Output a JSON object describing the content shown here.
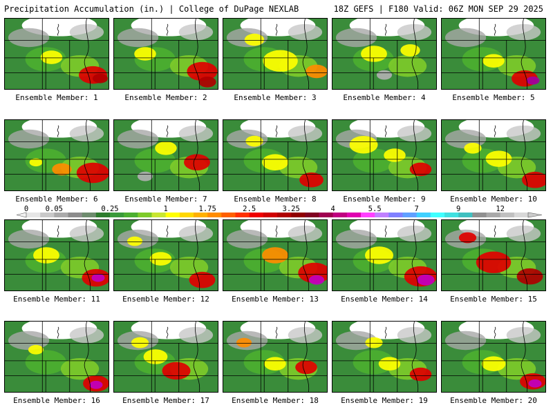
{
  "header": {
    "title": "Precipitation Accumulation (in.) | College of DuPage NEXLAB",
    "run_info": "18Z GEFS | F180 Valid: 06Z MON SEP 29 2025"
  },
  "member_label_prefix": "Ensemble Member:",
  "members": [
    {
      "id": 1,
      "blobs": [
        [
          0.85,
          0.8,
          1.3,
          "#e00000"
        ],
        [
          0.92,
          0.85,
          0.7,
          "#b00000"
        ],
        [
          0.45,
          0.55,
          1.0,
          "#ffff00"
        ]
      ]
    },
    {
      "id": 2,
      "blobs": [
        [
          0.85,
          0.75,
          1.4,
          "#e00000"
        ],
        [
          0.9,
          0.9,
          0.8,
          "#b00000"
        ],
        [
          0.3,
          0.5,
          1.0,
          "#ffff00"
        ]
      ]
    },
    {
      "id": 3,
      "blobs": [
        [
          0.55,
          0.6,
          1.6,
          "#ffff00"
        ],
        [
          0.9,
          0.75,
          1.0,
          "#ff8c00"
        ],
        [
          0.3,
          0.3,
          0.9,
          "#ffff00"
        ]
      ]
    },
    {
      "id": 4,
      "blobs": [
        [
          0.4,
          0.5,
          1.2,
          "#ffff00"
        ],
        [
          0.75,
          0.45,
          0.9,
          "#ffff00"
        ],
        [
          0.5,
          0.8,
          0.7,
          "#b0b0b0"
        ]
      ]
    },
    {
      "id": 5,
      "blobs": [
        [
          0.8,
          0.85,
          1.2,
          "#e00000"
        ],
        [
          0.88,
          0.88,
          0.6,
          "#a000a0"
        ],
        [
          0.5,
          0.6,
          1.0,
          "#ffff00"
        ]
      ]
    },
    {
      "id": 6,
      "blobs": [
        [
          0.85,
          0.75,
          1.5,
          "#e00000"
        ],
        [
          0.55,
          0.7,
          0.9,
          "#ff8c00"
        ],
        [
          0.3,
          0.6,
          0.6,
          "#ffff00"
        ]
      ]
    },
    {
      "id": 7,
      "blobs": [
        [
          0.8,
          0.6,
          1.2,
          "#e00000"
        ],
        [
          0.5,
          0.4,
          1.0,
          "#ffff00"
        ],
        [
          0.3,
          0.8,
          0.7,
          "#b0b0b0"
        ]
      ]
    },
    {
      "id": 8,
      "blobs": [
        [
          0.85,
          0.85,
          1.1,
          "#e00000"
        ],
        [
          0.5,
          0.6,
          1.2,
          "#ffff00"
        ],
        [
          0.3,
          0.3,
          0.8,
          "#ffff00"
        ]
      ]
    },
    {
      "id": 9,
      "blobs": [
        [
          0.85,
          0.7,
          1.0,
          "#e00000"
        ],
        [
          0.3,
          0.35,
          1.3,
          "#ffff00"
        ],
        [
          0.6,
          0.5,
          1.0,
          "#ffff00"
        ]
      ]
    },
    {
      "id": 10,
      "blobs": [
        [
          0.9,
          0.85,
          1.2,
          "#e00000"
        ],
        [
          0.55,
          0.55,
          1.2,
          "#ffff00"
        ],
        [
          0.3,
          0.4,
          0.8,
          "#ffff00"
        ]
      ]
    },
    {
      "id": 11,
      "blobs": [
        [
          0.88,
          0.82,
          1.3,
          "#e00000"
        ],
        [
          0.9,
          0.82,
          0.6,
          "#c000c0"
        ],
        [
          0.4,
          0.5,
          1.2,
          "#ffff00"
        ]
      ]
    },
    {
      "id": 12,
      "blobs": [
        [
          0.85,
          0.85,
          1.2,
          "#e00000"
        ],
        [
          0.45,
          0.55,
          1.0,
          "#ffff00"
        ],
        [
          0.2,
          0.3,
          0.7,
          "#ffff00"
        ]
      ]
    },
    {
      "id": 13,
      "blobs": [
        [
          0.88,
          0.75,
          1.5,
          "#e00000"
        ],
        [
          0.9,
          0.85,
          0.7,
          "#c000c0"
        ],
        [
          0.5,
          0.5,
          1.2,
          "#ff8c00"
        ]
      ]
    },
    {
      "id": 14,
      "blobs": [
        [
          0.85,
          0.8,
          1.5,
          "#e00000"
        ],
        [
          0.9,
          0.85,
          0.8,
          "#c000c0"
        ],
        [
          0.45,
          0.5,
          1.3,
          "#ffff00"
        ]
      ]
    },
    {
      "id": 15,
      "blobs": [
        [
          0.5,
          0.6,
          1.6,
          "#e00000"
        ],
        [
          0.85,
          0.8,
          1.2,
          "#b00000"
        ],
        [
          0.25,
          0.25,
          0.8,
          "#e00000"
        ]
      ]
    },
    {
      "id": 16,
      "blobs": [
        [
          0.88,
          0.88,
          1.2,
          "#e00000"
        ],
        [
          0.88,
          0.9,
          0.6,
          "#c000c0"
        ],
        [
          0.3,
          0.4,
          0.7,
          "#ffff00"
        ]
      ]
    },
    {
      "id": 17,
      "blobs": [
        [
          0.6,
          0.7,
          1.3,
          "#e00000"
        ],
        [
          0.4,
          0.5,
          1.1,
          "#ffff00"
        ],
        [
          0.25,
          0.3,
          0.8,
          "#ffff00"
        ]
      ]
    },
    {
      "id": 18,
      "blobs": [
        [
          0.8,
          0.65,
          1.0,
          "#e00000"
        ],
        [
          0.5,
          0.6,
          1.0,
          "#ffff00"
        ],
        [
          0.2,
          0.3,
          0.7,
          "#ff8c00"
        ]
      ]
    },
    {
      "id": 19,
      "blobs": [
        [
          0.85,
          0.75,
          1.0,
          "#e00000"
        ],
        [
          0.55,
          0.6,
          1.0,
          "#ffff00"
        ],
        [
          0.4,
          0.3,
          0.8,
          "#ffff00"
        ]
      ]
    },
    {
      "id": 20,
      "blobs": [
        [
          0.88,
          0.85,
          1.2,
          "#e00000"
        ],
        [
          0.9,
          0.88,
          0.6,
          "#c000c0"
        ],
        [
          0.5,
          0.6,
          1.1,
          "#ffff00"
        ]
      ]
    }
  ],
  "colorbar": {
    "labels": [
      "0",
      "0.05",
      "0.25",
      "1",
      "1.75",
      "2.5",
      "3.25",
      "4",
      "5.5",
      "7",
      "9",
      "12"
    ],
    "label_positions": [
      0,
      2,
      6,
      10,
      13,
      16,
      19,
      22,
      25,
      28,
      31,
      34
    ],
    "colors": [
      "#e6e6e6",
      "#c8c8c8",
      "#aaaaaa",
      "#8c8c8c",
      "#6e8c6e",
      "#2e7d2e",
      "#3a9a3a",
      "#4caf30",
      "#7ecb2a",
      "#c8e630",
      "#ffff00",
      "#ffd700",
      "#ffb000",
      "#ff8c00",
      "#ff6000",
      "#ff3000",
      "#f00000",
      "#d00000",
      "#b00000",
      "#900000",
      "#800020",
      "#a00050",
      "#c00080",
      "#e000b0",
      "#ff40ff",
      "#c080ff",
      "#8080ff",
      "#60a0ff",
      "#40d0ff",
      "#40ffff",
      "#40e0e0",
      "#40c0c0",
      "#909090",
      "#a8a8a8",
      "#c0c0c0",
      "#d8d8d8"
    ]
  }
}
